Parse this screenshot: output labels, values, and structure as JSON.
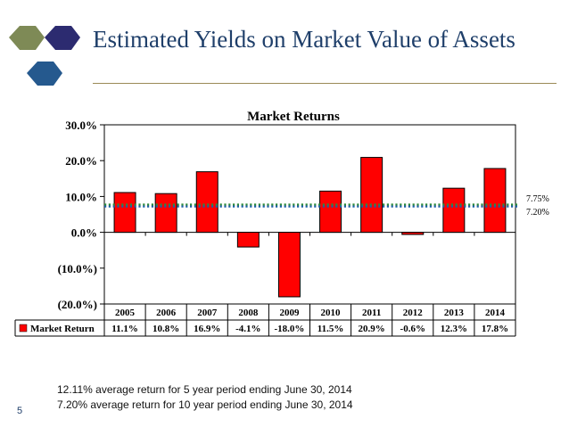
{
  "slide": {
    "title": "Estimated Yields on Market Value of Assets",
    "number": "5",
    "notes": [
      "12.11% average return for 5 year period ending June 30, 2014",
      "7.20% average return for 10 year period ending June 30, 2014"
    ]
  },
  "colors": {
    "title": "#1f3f6a",
    "hex_olive": "#7e8a56",
    "hex_navy": "#2c2b70",
    "hex_blue": "#25598e",
    "bar": "#ff0000",
    "line_green": "#2e8b3a",
    "line_blue": "#1d5fa8"
  },
  "chart_data": {
    "type": "bar",
    "title": "Market Returns",
    "categories": [
      "2005",
      "2006",
      "2007",
      "2008",
      "2009",
      "2010",
      "2011",
      "2012",
      "2013",
      "2014"
    ],
    "series": [
      {
        "name": "Market Return",
        "values": [
          11.1,
          10.8,
          16.9,
          -4.1,
          -18.0,
          11.5,
          20.9,
          -0.6,
          12.3,
          17.8
        ]
      }
    ],
    "value_labels": [
      "11.1%",
      "10.8%",
      "16.9%",
      "-4.1%",
      "-18.0%",
      "11.5%",
      "20.9%",
      "-0.6%",
      "12.3%",
      "17.8%"
    ],
    "y_ticks": [
      30,
      20,
      10,
      0,
      -10,
      -20
    ],
    "y_tick_labels": [
      "30.0%",
      "20.0%",
      "10.0%",
      "0.0%",
      "(10.0%)",
      "(20.0%)"
    ],
    "ylim": [
      -20,
      30
    ],
    "reference_lines": [
      {
        "label": "7.75%",
        "value": 7.75,
        "color": "#2e8b3a"
      },
      {
        "label": "7.20%",
        "value": 7.2,
        "color": "#1d5fa8"
      }
    ],
    "legend": "data-table",
    "grid": false
  }
}
